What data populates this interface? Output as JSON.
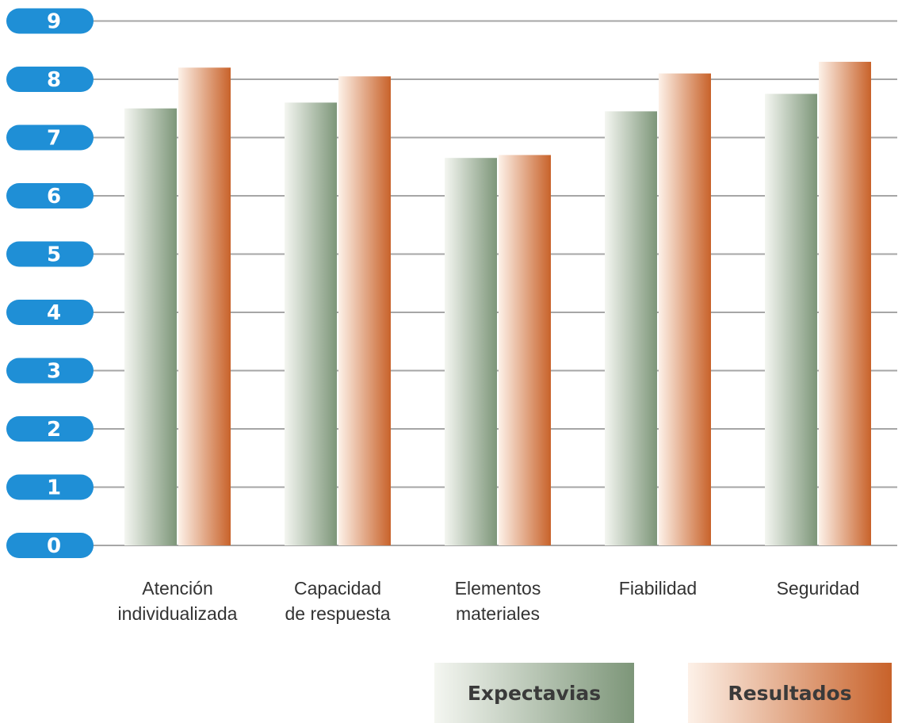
{
  "chart_data": {
    "type": "bar",
    "categories": [
      [
        "Atención",
        "individualizada"
      ],
      [
        "Capacidad",
        "de respuesta"
      ],
      [
        "Elementos",
        "materiales"
      ],
      [
        "Fiabilidad"
      ],
      [
        "Seguridad"
      ]
    ],
    "series": [
      {
        "name": "Expectavias",
        "values": [
          7.5,
          7.6,
          6.65,
          7.45,
          7.75
        ],
        "color_light": "#f4f6f1",
        "color_dark": "#7d9679"
      },
      {
        "name": "Resultados",
        "values": [
          8.2,
          8.05,
          6.7,
          8.1,
          8.3
        ],
        "color_light": "#fdf1e8",
        "color_dark": "#c8622a"
      }
    ],
    "yticks": [
      "0",
      "1",
      "2",
      "3",
      "4",
      "5",
      "6",
      "7",
      "8",
      "9"
    ],
    "ylim": [
      0,
      9
    ],
    "grid": true,
    "legend_position": "bottom-right",
    "axis_pill_color": "#1f8fd6",
    "title": "",
    "xlabel": "",
    "ylabel": ""
  }
}
